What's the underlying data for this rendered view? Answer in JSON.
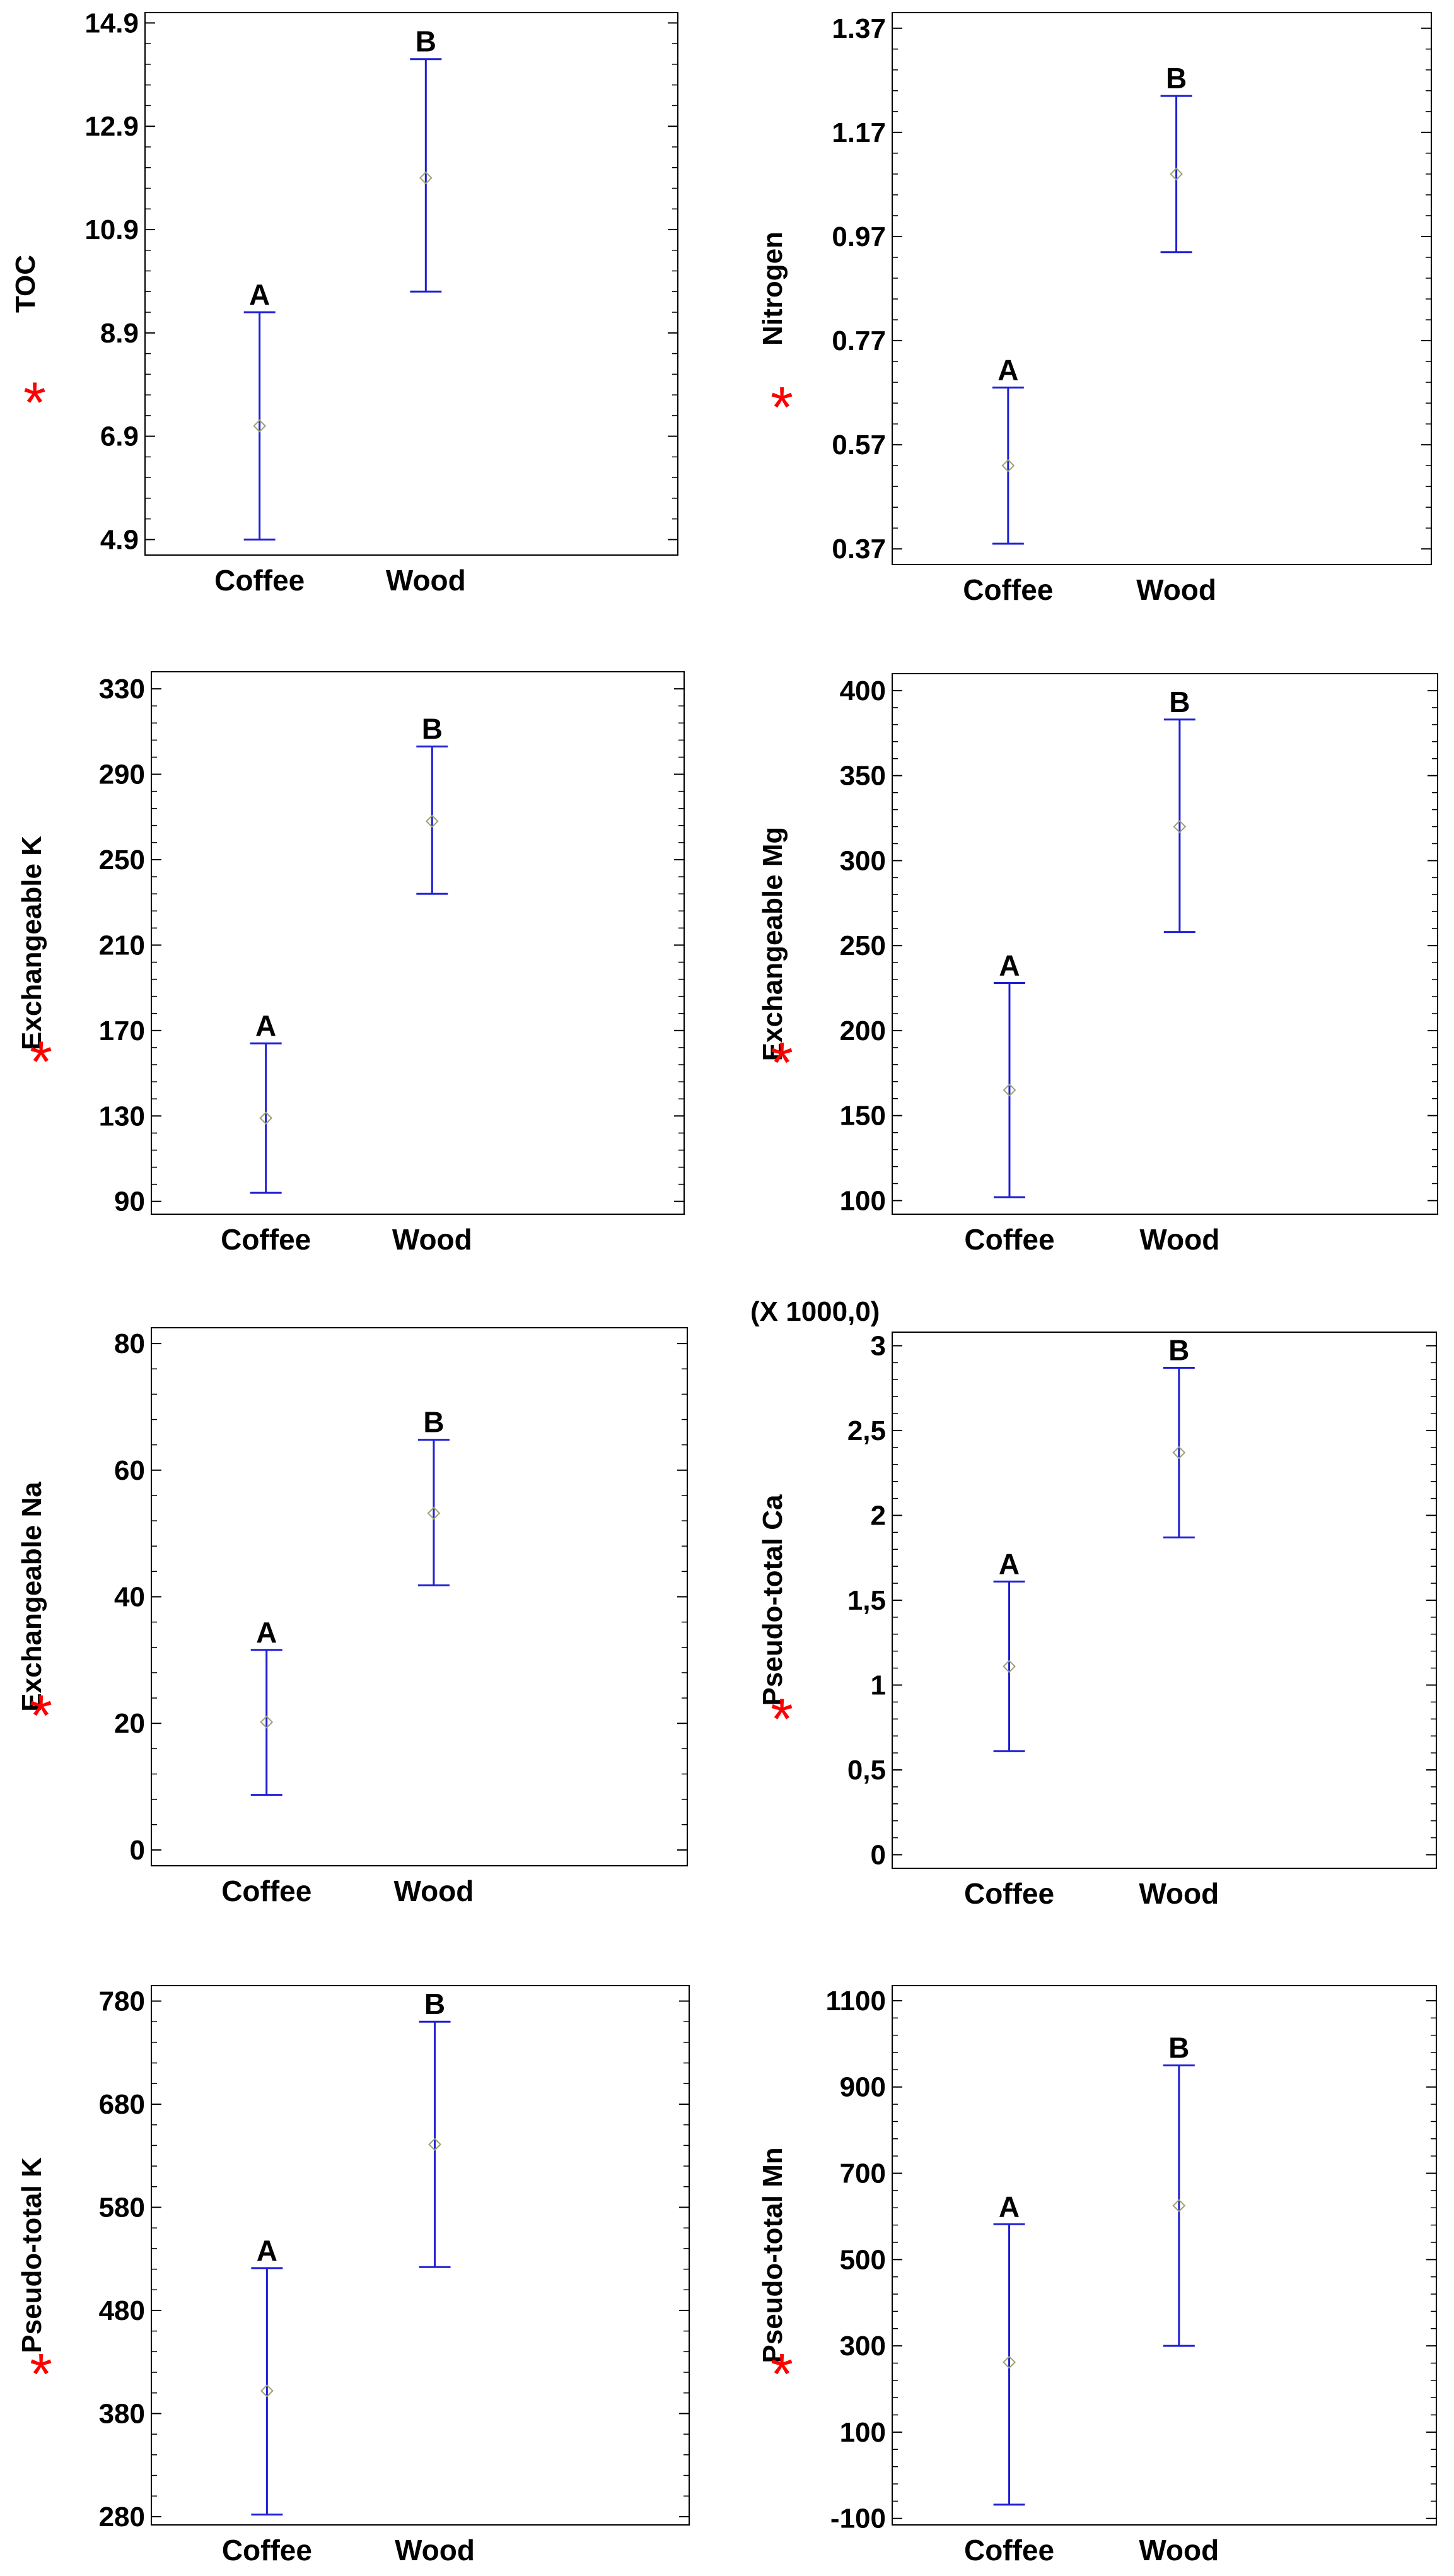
{
  "colors": {
    "interval": "#1f1fd6",
    "marker": "#a0a070",
    "frame": "#000000",
    "star": "#ff0000"
  },
  "significance_marker": "*",
  "chart_data": [
    {
      "type": "errorbar",
      "ylabel": "TOC",
      "significant": true,
      "categories": [
        "Coffee",
        "Wood"
      ],
      "yticks": [
        "4.9",
        "6.9",
        "8.9",
        "10.9",
        "12.9",
        "14.9"
      ],
      "ylim": [
        4.6,
        15.1
      ],
      "multiplier": "",
      "series": [
        {
          "name": "Coffee",
          "mean": 7.1,
          "lower": 4.9,
          "upper": 9.3,
          "group": "A"
        },
        {
          "name": "Wood",
          "mean": 11.9,
          "lower": 9.7,
          "upper": 14.2,
          "group": "B"
        }
      ]
    },
    {
      "type": "errorbar",
      "ylabel": "Nitrogen",
      "significant": true,
      "categories": [
        "Coffee",
        "Wood"
      ],
      "yticks": [
        "0.37",
        "0.57",
        "0.77",
        "0.97",
        "1.17",
        "1.37"
      ],
      "ylim": [
        0.34,
        1.4
      ],
      "multiplier": "",
      "series": [
        {
          "name": "Coffee",
          "mean": 0.53,
          "lower": 0.38,
          "upper": 0.68,
          "group": "A"
        },
        {
          "name": "Wood",
          "mean": 1.09,
          "lower": 0.94,
          "upper": 1.24,
          "group": "B"
        }
      ]
    },
    {
      "type": "errorbar",
      "ylabel": "Exchangeable K",
      "significant": true,
      "categories": [
        "Coffee",
        "Wood"
      ],
      "yticks": [
        "90",
        "130",
        "170",
        "210",
        "250",
        "290",
        "330"
      ],
      "ylim": [
        84,
        338
      ],
      "multiplier": "",
      "series": [
        {
          "name": "Coffee",
          "mean": 129,
          "lower": 94,
          "upper": 164,
          "group": "A"
        },
        {
          "name": "Wood",
          "mean": 268,
          "lower": 234,
          "upper": 303,
          "group": "B"
        }
      ]
    },
    {
      "type": "errorbar",
      "ylabel": "Exchangeable Mg",
      "significant": true,
      "categories": [
        "Coffee",
        "Wood"
      ],
      "yticks": [
        "100",
        "150",
        "200",
        "250",
        "300",
        "350",
        "400"
      ],
      "ylim": [
        92,
        410
      ],
      "multiplier": "",
      "series": [
        {
          "name": "Coffee",
          "mean": 165,
          "lower": 102,
          "upper": 228,
          "group": "A"
        },
        {
          "name": "Wood",
          "mean": 320,
          "lower": 258,
          "upper": 383,
          "group": "B"
        }
      ]
    },
    {
      "type": "errorbar",
      "ylabel": "Exchangeable Na",
      "significant": true,
      "categories": [
        "Coffee",
        "Wood"
      ],
      "yticks": [
        "0",
        "20",
        "40",
        "60",
        "80"
      ],
      "ylim": [
        -2.5,
        82.5
      ],
      "multiplier": "",
      "series": [
        {
          "name": "Coffee",
          "mean": 20.2,
          "lower": 8.7,
          "upper": 31.6,
          "group": "A"
        },
        {
          "name": "Wood",
          "mean": 53.2,
          "lower": 41.8,
          "upper": 64.8,
          "group": "B"
        }
      ]
    },
    {
      "type": "errorbar",
      "ylabel": "Pseudo-total Ca",
      "significant": true,
      "categories": [
        "Coffee",
        "Wood"
      ],
      "yticks": [
        "0",
        "0,5",
        "1",
        "1,5",
        "2",
        "2,5",
        "3"
      ],
      "ylim": [
        -0.08,
        3.08
      ],
      "multiplier": "(X 1000,0)",
      "series": [
        {
          "name": "Coffee",
          "mean": 1.11,
          "lower": 0.61,
          "upper": 1.61,
          "group": "A"
        },
        {
          "name": "Wood",
          "mean": 2.37,
          "lower": 1.87,
          "upper": 2.87,
          "group": "B"
        }
      ]
    },
    {
      "type": "errorbar",
      "ylabel": "Pseudo-total K",
      "significant": true,
      "categories": [
        "Coffee",
        "Wood"
      ],
      "yticks": [
        "280",
        "380",
        "480",
        "580",
        "680",
        "780"
      ],
      "ylim": [
        272,
        795
      ],
      "multiplier": "",
      "series": [
        {
          "name": "Coffee",
          "mean": 402,
          "lower": 282,
          "upper": 521,
          "group": "A"
        },
        {
          "name": "Wood",
          "mean": 641,
          "lower": 522,
          "upper": 760,
          "group": "B"
        }
      ]
    },
    {
      "type": "errorbar",
      "ylabel": "Pseudo-total Mn",
      "significant": true,
      "categories": [
        "Coffee",
        "Wood"
      ],
      "yticks": [
        "-100",
        "100",
        "300",
        "500",
        "700",
        "900",
        "1100"
      ],
      "ylim": [
        -115,
        1135
      ],
      "multiplier": "",
      "series": [
        {
          "name": "Coffee",
          "mean": 262,
          "lower": -68,
          "upper": 582,
          "group": "A"
        },
        {
          "name": "Wood",
          "mean": 625,
          "lower": 300,
          "upper": 950,
          "group": "B"
        }
      ]
    }
  ]
}
